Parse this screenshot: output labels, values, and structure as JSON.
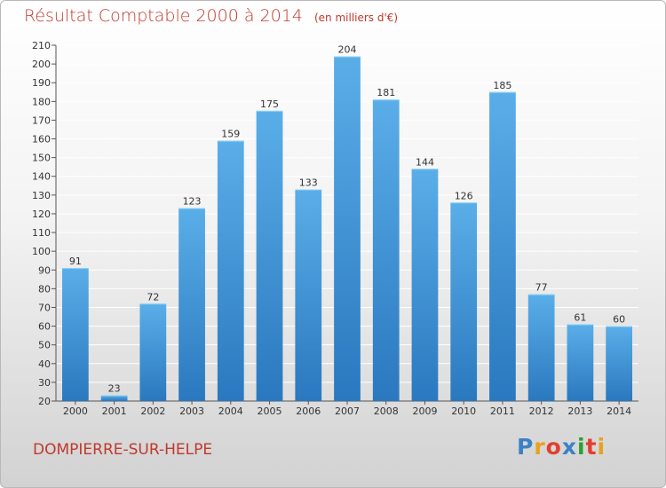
{
  "chart_data": {
    "type": "bar",
    "title": "Résultat Comptable 2000 à 2014",
    "subtitle": "(en milliers d'€)",
    "categories": [
      "2000",
      "2001",
      "2002",
      "2003",
      "2004",
      "2005",
      "2006",
      "2007",
      "2008",
      "2009",
      "2010",
      "2011",
      "2012",
      "2013",
      "2014"
    ],
    "values": [
      91,
      23,
      72,
      123,
      159,
      175,
      133,
      204,
      181,
      144,
      126,
      185,
      77,
      61,
      60
    ],
    "ylim": [
      20,
      210
    ],
    "ytick_step": 10,
    "xlabel": "",
    "ylabel": "",
    "grid": true,
    "bar_color_top": "#5aaee8",
    "bar_color_bottom": "#2a78bf"
  },
  "footer": {
    "place": "DOMPIERRE-SUR-HELPE",
    "logo_text": "Proxiti",
    "logo_colors": [
      "#3b82c4",
      "#e8a020",
      "#e04030",
      "#3b82c4",
      "#2ca02c",
      "#e04030",
      "#e8a020"
    ]
  },
  "colors": {
    "accent": "#c0392b",
    "grid": "#ffffff"
  }
}
